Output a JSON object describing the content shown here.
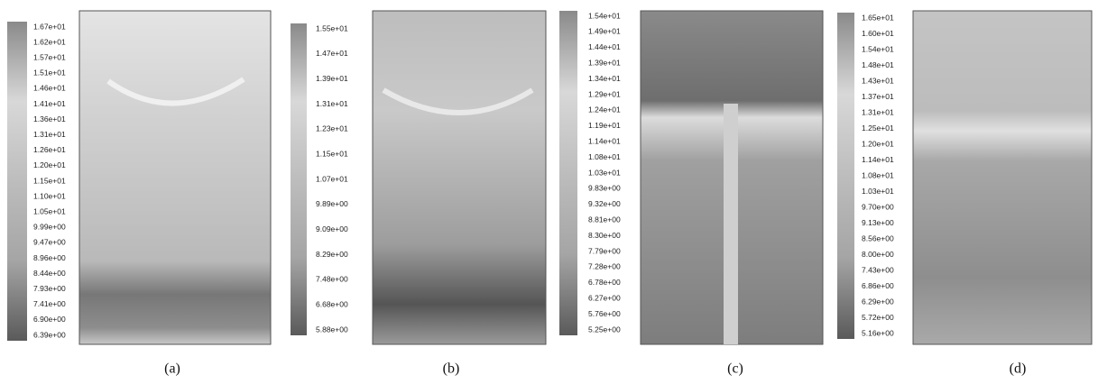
{
  "panels": [
    {
      "caption": "(a)",
      "labels": [
        "1.67e+01",
        "1.62e+01",
        "1.57e+01",
        "1.51e+01",
        "1.46e+01",
        "1.41e+01",
        "1.36e+01",
        "1.31e+01",
        "1.26e+01",
        "1.20e+01",
        "1.15e+01",
        "1.10e+01",
        "1.05e+01",
        "9.99e+00",
        "9.47e+00",
        "8.96e+00",
        "8.44e+00",
        "7.93e+00",
        "7.41e+00",
        "6.90e+00",
        "6.39e+00"
      ]
    },
    {
      "caption": "(b)",
      "labels": [
        "1.55e+01",
        "1.47e+01",
        "1.39e+01",
        "1.31e+01",
        "1.23e+01",
        "1.15e+01",
        "1.07e+01",
        "9.89e+00",
        "9.09e+00",
        "8.29e+00",
        "7.48e+00",
        "6.68e+00",
        "5.88e+00"
      ]
    },
    {
      "caption": "(c)",
      "labels": [
        "1.54e+01",
        "1.49e+01",
        "1.44e+01",
        "1.39e+01",
        "1.34e+01",
        "1.29e+01",
        "1.24e+01",
        "1.19e+01",
        "1.14e+01",
        "1.08e+01",
        "1.03e+01",
        "9.83e+00",
        "9.32e+00",
        "8.81e+00",
        "8.30e+00",
        "7.79e+00",
        "7.28e+00",
        "6.78e+00",
        "6.27e+00",
        "5.76e+00",
        "5.25e+00"
      ]
    },
    {
      "caption": "(d)",
      "labels": [
        "1.65e+01",
        "1.60e+01",
        "1.54e+01",
        "1.48e+01",
        "1.43e+01",
        "1.37e+01",
        "1.31e+01",
        "1.25e+01",
        "1.20e+01",
        "1.14e+01",
        "1.08e+01",
        "1.03e+01",
        "9.70e+00",
        "9.13e+00",
        "8.56e+00",
        "8.00e+00",
        "7.43e+00",
        "6.86e+00",
        "6.29e+00",
        "5.72e+00",
        "5.16e+00"
      ]
    }
  ]
}
